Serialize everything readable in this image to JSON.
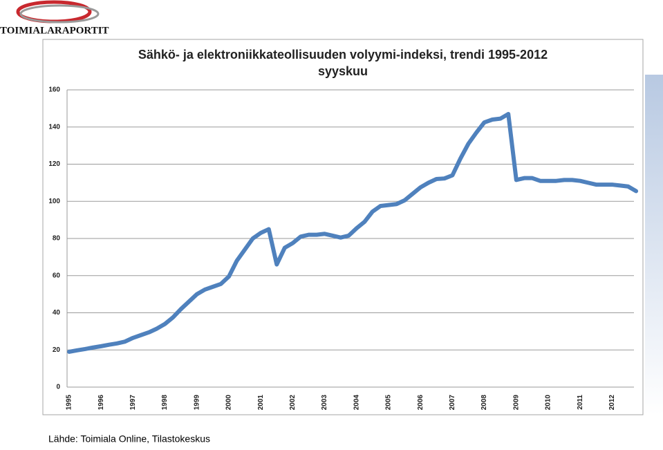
{
  "logo": "TOIMIALARAPORTIT",
  "source": "Lähde: Toimiala Online, Tilastokeskus",
  "chart_data": {
    "type": "line",
    "title": "Sähkö- ja elektroniikkateollisuuden volyymi-indeksi, trendi 1995-2012",
    "subtitle": "syyskuu",
    "categories": [
      "1995",
      null,
      null,
      null,
      "1996",
      null,
      null,
      null,
      "1997",
      null,
      null,
      null,
      "1998",
      null,
      null,
      null,
      "1999",
      null,
      null,
      null,
      "2000",
      null,
      null,
      null,
      "2001",
      null,
      null,
      null,
      "2002",
      null,
      null,
      null,
      "2003",
      null,
      null,
      null,
      "2004",
      null,
      null,
      null,
      "2005",
      null,
      null,
      null,
      "2006",
      null,
      null,
      null,
      "2007",
      null,
      null,
      null,
      "2008",
      null,
      null,
      null,
      "2009",
      null,
      null,
      null,
      "2010",
      null,
      null,
      null,
      "2011",
      null,
      null,
      null,
      "2012",
      null,
      null,
      null
    ],
    "series": [
      {
        "color": "#4f81bd",
        "values": [
          19,
          19.8,
          20.5,
          21.3,
          22,
          22.8,
          23.5,
          24.5,
          26.5,
          28,
          29.5,
          31.5,
          34,
          37.5,
          42,
          46,
          50,
          52.5,
          54,
          55.5,
          59.5,
          68,
          74,
          80,
          83,
          85,
          66,
          75,
          77.5,
          81,
          82,
          82,
          82.5,
          81.5,
          80.5,
          81.5,
          85.5,
          89,
          94.5,
          97.5,
          98,
          98.5,
          100.5,
          104,
          107.5,
          110,
          112,
          112.3,
          114,
          123,
          131,
          137,
          142.5,
          144,
          144.5,
          147,
          111.5,
          112.5,
          112.5,
          111,
          111,
          111,
          111.5,
          111.5,
          111,
          110,
          109,
          109,
          109,
          108.5,
          108,
          105.5
        ]
      }
    ],
    "ylim": [
      0,
      160
    ],
    "yticks": [
      0,
      20,
      40,
      60,
      80,
      100,
      120,
      140,
      160
    ],
    "grid": true
  }
}
